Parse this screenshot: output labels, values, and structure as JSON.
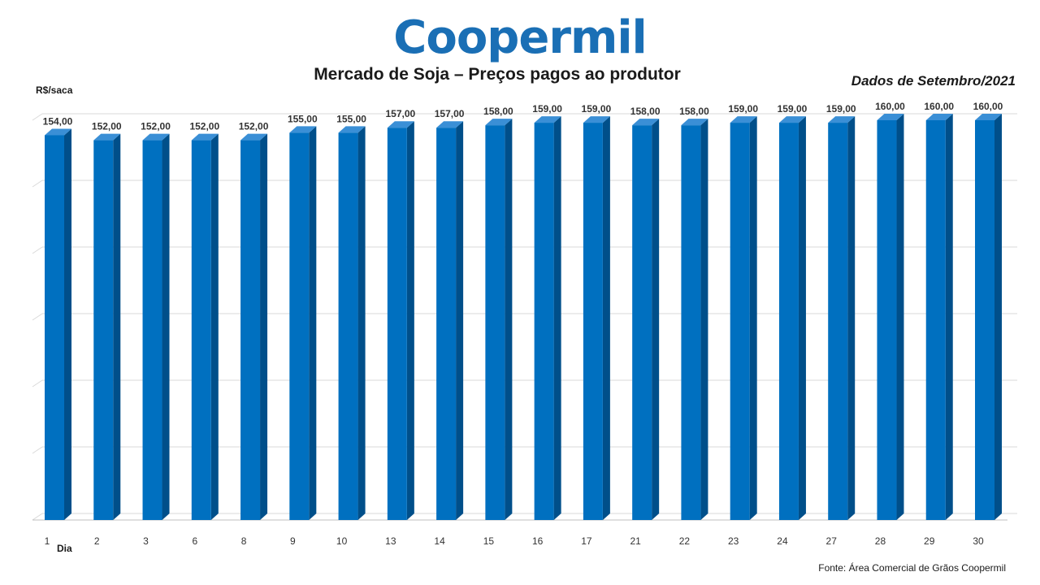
{
  "logo": {
    "text": "Coopermil"
  },
  "chart_data": {
    "type": "bar",
    "title": "Mercado de Soja – Preços pagos ao produtor",
    "subtitle": "Dados de Setembro/2021",
    "ylabel": "R$/saca",
    "xlabel": "Dia",
    "source": "Fonte:  Área Comercial de Grãos Coopermil",
    "categories": [
      "1",
      "2",
      "3",
      "6",
      "8",
      "9",
      "10",
      "13",
      "14",
      "15",
      "16",
      "17",
      "21",
      "22",
      "23",
      "24",
      "27",
      "28",
      "29",
      "30"
    ],
    "values": [
      154,
      152,
      152,
      152,
      152,
      155,
      155,
      157,
      157,
      158,
      159,
      159,
      158,
      158,
      159,
      159,
      159,
      160,
      160,
      160
    ],
    "data_labels": [
      "154,00",
      "152,00",
      "152,00",
      "152,00",
      "152,00",
      "155,00",
      "155,00",
      "157,00",
      "157,00",
      "158,00",
      "159,00",
      "159,00",
      "158,00",
      "158,00",
      "159,00",
      "159,00",
      "159,00",
      "160,00",
      "160,00",
      "160,00"
    ],
    "ylim": [
      0,
      160
    ],
    "grid": true,
    "colors": {
      "bar_front": "#0070c0",
      "bar_side": "#004f8a",
      "bar_top": "#3a8fd6",
      "grid": "#d9d9d9",
      "axis": "#bfbfbf"
    }
  }
}
